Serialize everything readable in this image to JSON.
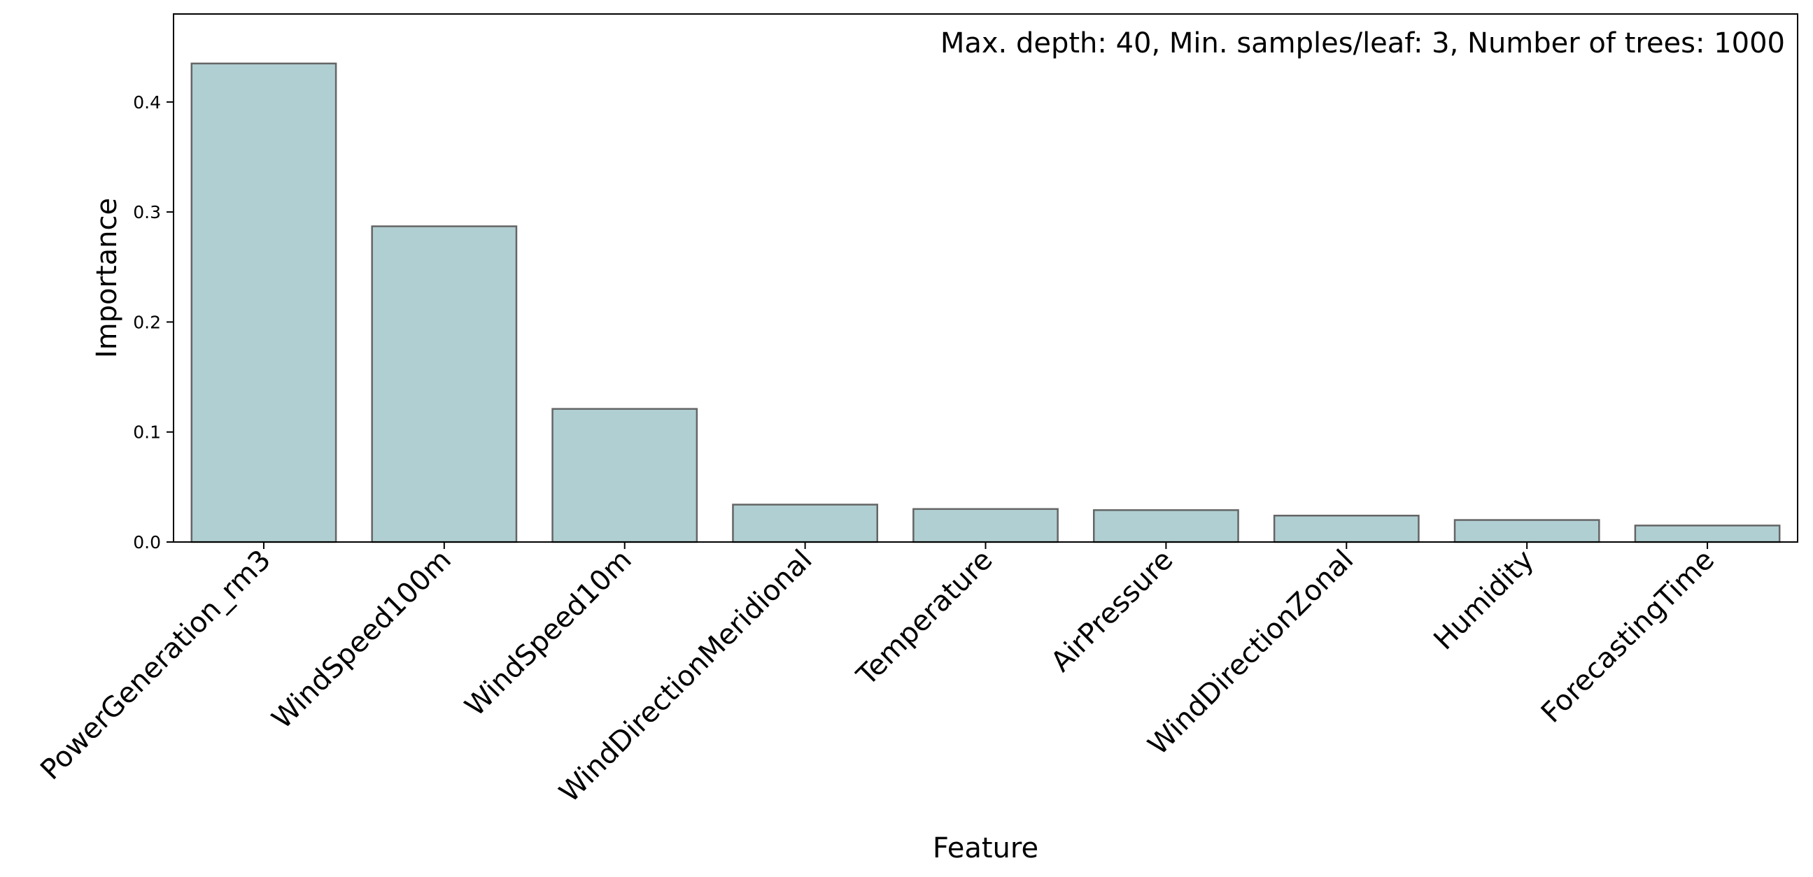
{
  "chart_data": {
    "type": "bar",
    "categories": [
      "PowerGeneration_rm3",
      "WindSpeed100m",
      "WindSpeed10m",
      "WindDirectionMeridional",
      "Temperature",
      "AirPressure",
      "WindDirectionZonal",
      "Humidity",
      "ForecastingTime"
    ],
    "values": [
      0.435,
      0.287,
      0.121,
      0.034,
      0.03,
      0.029,
      0.024,
      0.02,
      0.015
    ],
    "title": "",
    "annotation": "Max. depth: 40, Min. samples/leaf: 3, Number of trees: 1000",
    "xlabel": "Feature",
    "ylabel": "Importance",
    "ylim": [
      0,
      0.48
    ],
    "yticks": [
      0.0,
      0.1,
      0.2,
      0.3,
      0.4
    ],
    "ytick_labels": [
      "0.0",
      "0.1",
      "0.2",
      "0.3",
      "0.4"
    ],
    "grid": false,
    "legend": "none",
    "colors": {
      "bar_fill": "#b0cfd2",
      "bar_edge": "#656565",
      "axis": "#000000",
      "background": "#ffffff"
    }
  }
}
